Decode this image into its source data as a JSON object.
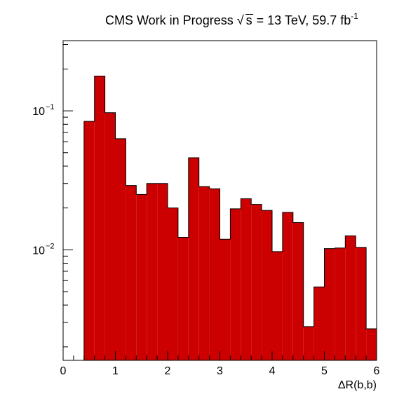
{
  "chart_data": {
    "type": "bar",
    "histogram": true,
    "title_parts": {
      "label": "CMS Work in Progress",
      "sqrt_symbol": "√",
      "sqrt_arg": "s",
      "energy": " = 13 TeV, 59.7 fb",
      "lumi_exp": "-1"
    },
    "xlabel": "ΔR(b,b)",
    "ylabel": "",
    "xlim": [
      0,
      6
    ],
    "ylim": [
      0.0016,
      0.32
    ],
    "yscale": "log",
    "x_ticks": [
      "0",
      "1",
      "2",
      "3",
      "4",
      "5",
      "6"
    ],
    "y_ticks": [
      {
        "value": 0.1,
        "base": "10",
        "exp": "−1"
      },
      {
        "value": 0.01,
        "base": "10",
        "exp": "−2"
      }
    ],
    "bin_width": 0.2,
    "bin_edges_start": 0.4,
    "values": [
      0.084,
      0.178,
      0.097,
      0.063,
      0.029,
      0.025,
      0.03,
      0.03,
      0.02,
      0.0123,
      0.046,
      0.0285,
      0.0275,
      0.0119,
      0.0197,
      0.0233,
      0.0212,
      0.0192,
      0.0097,
      0.0186,
      0.0157,
      0.0028,
      0.0054,
      0.0102,
      0.0103,
      0.0126,
      0.0104,
      0.0027
    ],
    "fill_color": "#cc0000",
    "line_color": "#000000",
    "grid": false
  }
}
